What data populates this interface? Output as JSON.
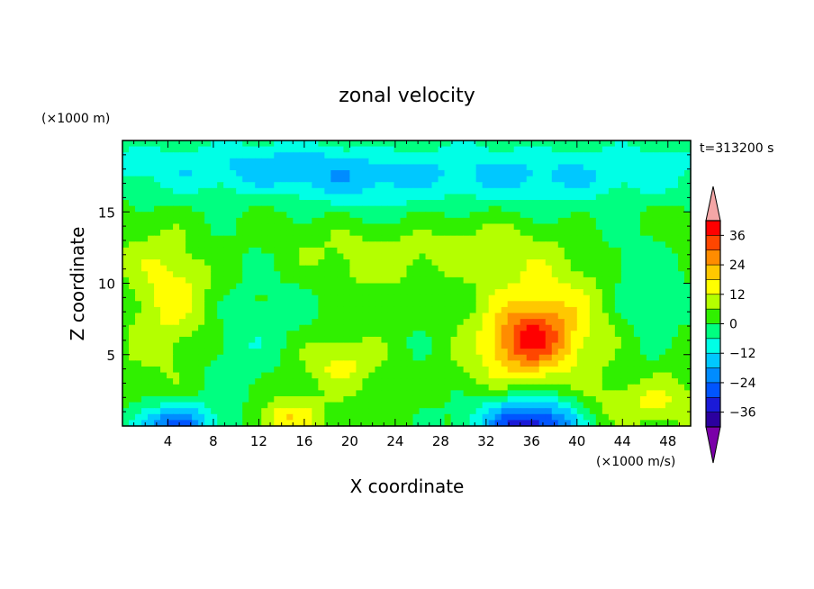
{
  "chart_data": {
    "type": "heatmap",
    "title": "zonal velocity",
    "xlabel": "X coordinate",
    "ylabel": "Z coordinate",
    "xunit": "(×1000 m/s)",
    "yunit": "(×1000 m)",
    "time_label": "t=313200 s",
    "xlim": [
      0,
      50
    ],
    "ylim": [
      0,
      20
    ],
    "xticks": [
      4,
      8,
      12,
      16,
      20,
      24,
      28,
      32,
      36,
      40,
      44,
      48
    ],
    "yticks": [
      5,
      10,
      15
    ],
    "colorbar": {
      "levels": [
        -42,
        -36,
        -30,
        -24,
        -18,
        -12,
        -6,
        0,
        6,
        12,
        18,
        24,
        30,
        36,
        42
      ],
      "tick_labels": [
        36,
        24,
        12,
        0,
        -12,
        -24,
        -36
      ],
      "colors": [
        "#7a00a8",
        "#2b009f",
        "#1a1ad8",
        "#0055ff",
        "#008cff",
        "#00c8ff",
        "#00ffe6",
        "#00ff80",
        "#30f000",
        "#b4ff00",
        "#ffff00",
        "#ffc800",
        "#ff8c00",
        "#ff4600",
        "#ff0000",
        "#f4a6a6"
      ],
      "extend": "both"
    },
    "features": [
      {
        "x": 36,
        "z": 6.2,
        "value": 24,
        "sx": 2.3,
        "sz": 1.6
      },
      {
        "x": 36,
        "z": 6.5,
        "value": 14,
        "sx": 6.5,
        "sz": 3.5
      },
      {
        "x": 4,
        "z": 8.5,
        "value": 12,
        "sx": 2.6,
        "sz": 3.5
      },
      {
        "x": 19.5,
        "z": 4.5,
        "value": 12,
        "sx": 2.5,
        "sz": 1.2
      },
      {
        "x": 14.5,
        "z": 0.6,
        "value": 16,
        "sx": 2.0,
        "sz": 0.9
      },
      {
        "x": 46,
        "z": 1.5,
        "value": 12,
        "sx": 3.5,
        "sz": 1.2
      },
      {
        "x": 26,
        "z": 12.0,
        "value": 8,
        "sx": 6.0,
        "sz": 1.5
      },
      {
        "x": 36,
        "z": 0.0,
        "value": -40,
        "sx": 3.2,
        "sz": 1.6
      },
      {
        "x": 4.5,
        "z": 0.0,
        "value": -30,
        "sx": 2.6,
        "sz": 1.1
      },
      {
        "x": 24,
        "z": 17.5,
        "value": -16,
        "sx": 14.0,
        "sz": 1.6
      },
      {
        "x": 11,
        "z": 6.0,
        "value": -8,
        "sx": 3.0,
        "sz": 2.5
      },
      {
        "x": 28,
        "z": 7.0,
        "value": -8,
        "sx": 3.0,
        "sz": 3.0
      },
      {
        "x": 45.5,
        "z": 8.0,
        "value": -10,
        "sx": 2.5,
        "sz": 3.5
      },
      {
        "x": 8,
        "z": 18.5,
        "value": -8,
        "sx": 8.0,
        "sz": 1.2
      },
      {
        "x": 44,
        "z": 18.0,
        "value": -8,
        "sx": 6.0,
        "sz": 1.5
      }
    ],
    "background_value": 2
  }
}
